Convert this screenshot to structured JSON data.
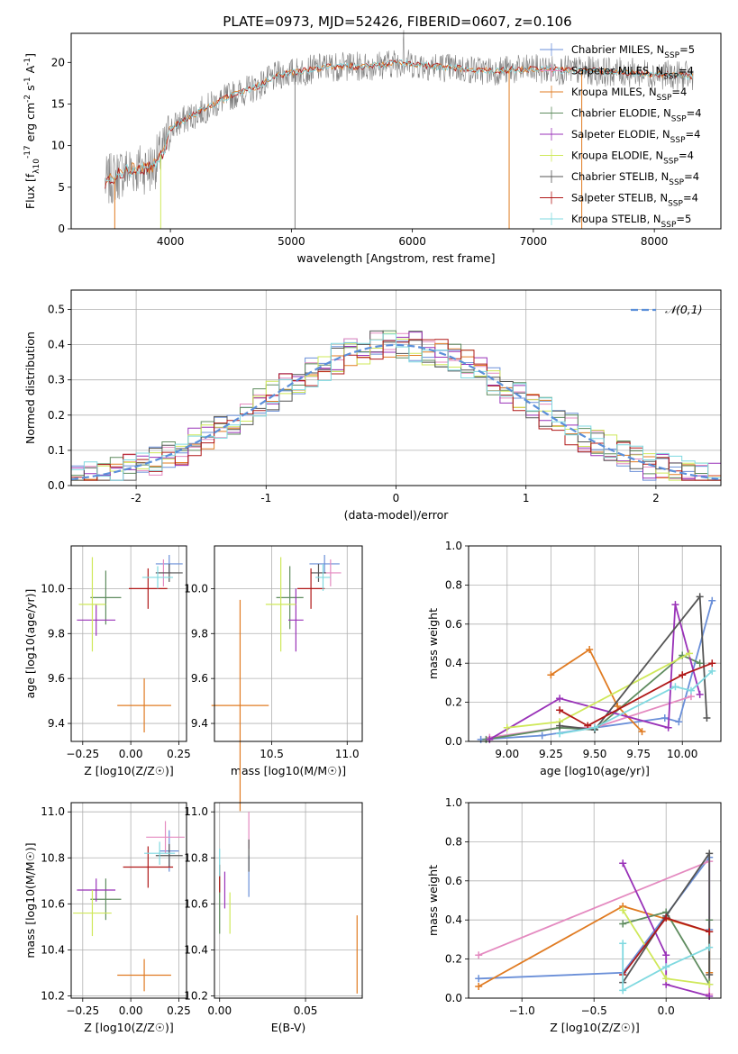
{
  "figure": {
    "title": "PLATE=0973, MJD=52426, FIBERID=0607, z=0.106"
  },
  "colors": {
    "chabrier_miles": "#6a8fd8",
    "salpeter_miles": "#e48ac0",
    "kroupa_miles": "#e07b22",
    "chabrier_elodie": "#5f8c5f",
    "salpeter_elodie": "#9932b8",
    "kroupa_elodie": "#cfe85a",
    "chabrier_stelib": "#555555",
    "salpeter_stelib": "#b01818",
    "kroupa_stelib": "#7fd9e0",
    "normal_curve": "#5b8fd9",
    "grid": "#b0b0b0",
    "spectrum_gray": "#808080"
  },
  "chart_data": [
    {
      "id": "spectrum",
      "type": "line",
      "title": "PLATE=0973, MJD=52426, FIBERID=0607, z=0.106",
      "xlabel": "wavelength [Angstrom, rest frame]",
      "ylabel": "Flux [f_λ10^-17 erg cm^-2 s^-1 A^-1]",
      "xlim": [
        3180,
        8550
      ],
      "ylim": [
        0,
        23.5
      ],
      "xticks": [
        4000,
        5000,
        6000,
        7000,
        8000
      ],
      "yticks": [
        0,
        5,
        10,
        15,
        20
      ],
      "grid": false,
      "legend_position": "top-right",
      "legend": [
        "Chabrier MILES, N_SSP=5",
        "Salpeter MILES, N_SSP=4",
        "Kroupa MILES, N_SSP=4",
        "Chabrier ELODIE, N_SSP=4",
        "Salpeter ELODIE, N_SSP=4",
        "Kroupa ELODIE, N_SSP=4",
        "Chabrier STELIB, N_SSP=4",
        "Salpeter STELIB, N_SSP=4",
        "Kroupa STELIB, N_SSP=5"
      ],
      "continuum_points": [
        [
          3460,
          5.5
        ],
        [
          3600,
          6.8
        ],
        [
          3700,
          7.2
        ],
        [
          3850,
          7.4
        ],
        [
          3950,
          9.5
        ],
        [
          4000,
          12.0
        ],
        [
          4100,
          13.0
        ],
        [
          4300,
          14.5
        ],
        [
          4500,
          16.0
        ],
        [
          4700,
          17.0
        ],
        [
          4900,
          18.5
        ],
        [
          5100,
          19.0
        ],
        [
          5300,
          19.5
        ],
        [
          5600,
          19.5
        ],
        [
          5900,
          20.0
        ],
        [
          6200,
          19.5
        ],
        [
          6600,
          19.0
        ],
        [
          7000,
          19.2
        ],
        [
          7400,
          19.0
        ],
        [
          7800,
          18.8
        ],
        [
          8100,
          18.5
        ],
        [
          8320,
          18.3
        ]
      ]
    },
    {
      "id": "residuals",
      "type": "histogram",
      "xlabel": "(data-model)/error",
      "ylabel": "Normed distribution",
      "xlim": [
        -2.5,
        2.5
      ],
      "ylim": [
        0,
        0.555
      ],
      "xticks": [
        -2,
        -1,
        0,
        1,
        2
      ],
      "yticks": [
        0.0,
        0.1,
        0.2,
        0.3,
        0.4,
        0.5
      ],
      "grid": true,
      "bin_width": 0.1,
      "legend_position": "top-right",
      "legend": [
        "𝒩(0,1)"
      ],
      "normal_curve": {
        "mean": 0,
        "sigma": 1
      }
    },
    {
      "id": "age-Z",
      "type": "errorbar",
      "xlabel": "Z [log10(Z/Z☉)]",
      "ylabel": "age  [log10(age/yr)]",
      "xlim": [
        -0.31,
        0.29
      ],
      "ylim": [
        9.32,
        10.19
      ],
      "xticks": [
        -0.25,
        0.0,
        0.25
      ],
      "xticklabels": [
        "−0.25",
        "0.00",
        "0.25"
      ],
      "yticks": [
        9.4,
        9.6,
        9.8,
        10.0
      ],
      "grid": true,
      "points": [
        {
          "model": "chabrier_miles",
          "x": 0.2,
          "xerr": 0.07,
          "y": 10.11,
          "yerr": 0.04
        },
        {
          "model": "salpeter_miles",
          "x": 0.17,
          "xerr": 0.04,
          "y": 10.07,
          "yerr": 0.06
        },
        {
          "model": "kroupa_miles",
          "x": 0.07,
          "xerr": 0.14,
          "y": 9.48,
          "yerr": 0.12
        },
        {
          "model": "chabrier_elodie",
          "x": -0.13,
          "xerr": 0.08,
          "y": 9.96,
          "yerr": 0.12
        },
        {
          "model": "salpeter_elodie",
          "x": -0.18,
          "xerr": 0.1,
          "y": 9.86,
          "yerr": 0.07
        },
        {
          "model": "kroupa_elodie",
          "x": -0.2,
          "xerr": 0.07,
          "y": 9.93,
          "yerr": 0.21
        },
        {
          "model": "chabrier_stelib",
          "x": 0.2,
          "xerr": 0.07,
          "y": 10.07,
          "yerr": 0.04
        },
        {
          "model": "salpeter_stelib",
          "x": 0.09,
          "xerr": 0.1,
          "y": 10.0,
          "yerr": 0.09
        },
        {
          "model": "kroupa_stelib",
          "x": 0.14,
          "xerr": 0.08,
          "y": 10.05,
          "yerr": 0.05
        }
      ]
    },
    {
      "id": "age-mass",
      "type": "errorbar",
      "xlabel": "mass [log10(M/M☉)]",
      "xlim": [
        10.12,
        11.1
      ],
      "ylim": [
        9.32,
        10.19
      ],
      "xticks": [
        10.5,
        11.0
      ],
      "xticklabels": [
        "10.5",
        "11.0"
      ],
      "yticks": [
        9.4,
        9.6,
        9.8,
        10.0
      ],
      "grid": true,
      "points": [
        {
          "model": "chabrier_miles",
          "x": 10.85,
          "xerr": 0.1,
          "y": 10.11,
          "yerr": 0.04
        },
        {
          "model": "salpeter_miles",
          "x": 10.89,
          "xerr": 0.07,
          "y": 10.07,
          "yerr": 0.06
        },
        {
          "model": "kroupa_miles",
          "x": 10.29,
          "xerr": 0.19,
          "y": 9.48,
          "yerr": 0.47
        },
        {
          "model": "chabrier_elodie",
          "x": 10.62,
          "xerr": 0.09,
          "y": 9.96,
          "yerr": 0.14
        },
        {
          "model": "salpeter_elodie",
          "x": 10.66,
          "xerr": 0.05,
          "y": 9.86,
          "yerr": 0.14
        },
        {
          "model": "kroupa_elodie",
          "x": 10.56,
          "xerr": 0.1,
          "y": 9.93,
          "yerr": 0.21
        },
        {
          "model": "chabrier_stelib",
          "x": 10.81,
          "xerr": 0.05,
          "y": 10.07,
          "yerr": 0.04
        },
        {
          "model": "salpeter_stelib",
          "x": 10.76,
          "xerr": 0.09,
          "y": 10.0,
          "yerr": 0.09
        },
        {
          "model": "kroupa_stelib",
          "x": 10.84,
          "xerr": 0.05,
          "y": 10.05,
          "yerr": 0.06
        }
      ]
    },
    {
      "id": "weight-age",
      "type": "line",
      "xlabel": "age  [log10(age/yr)]",
      "ylabel": "mass weight",
      "xlim": [
        8.78,
        10.22
      ],
      "ylim": [
        0.0,
        1.0
      ],
      "xticks": [
        9.0,
        9.25,
        9.5,
        9.75,
        10.0
      ],
      "xticklabels": [
        "9.00",
        "9.25",
        "9.50",
        "9.75",
        "10.00"
      ],
      "yticks": [
        0.0,
        0.2,
        0.4,
        0.6,
        0.8,
        1.0
      ],
      "grid": true,
      "series": [
        {
          "model": "chabrier_miles",
          "x": [
            8.85,
            9.2,
            9.5,
            9.9,
            9.98,
            10.17
          ],
          "y": [
            0.01,
            0.03,
            0.07,
            0.12,
            0.1,
            0.72
          ]
        },
        {
          "model": "salpeter_miles",
          "x": [
            8.9,
            9.3,
            9.5,
            10.05
          ],
          "y": [
            0.02,
            0.07,
            0.07,
            0.23
          ]
        },
        {
          "model": "kroupa_miles",
          "x": [
            9.25,
            9.47,
            9.63,
            9.77
          ],
          "y": [
            0.34,
            0.47,
            0.18,
            0.05
          ]
        },
        {
          "model": "chabrier_elodie",
          "x": [
            8.88,
            9.3,
            9.5,
            10.0,
            10.1
          ],
          "y": [
            0.01,
            0.07,
            0.06,
            0.44,
            0.4
          ]
        },
        {
          "model": "salpeter_elodie",
          "x": [
            8.9,
            9.3,
            9.92,
            9.96,
            10.1
          ],
          "y": [
            0.01,
            0.22,
            0.07,
            0.7,
            0.24
          ]
        },
        {
          "model": "kroupa_elodie",
          "x": [
            9.0,
            9.3,
            10.04
          ],
          "y": [
            0.07,
            0.1,
            0.45
          ]
        },
        {
          "model": "chabrier_stelib",
          "x": [
            9.3,
            9.5,
            10.1,
            10.14
          ],
          "y": [
            0.08,
            0.06,
            0.74,
            0.12
          ]
        },
        {
          "model": "salpeter_stelib",
          "x": [
            9.3,
            9.46,
            10.0,
            10.17
          ],
          "y": [
            0.16,
            0.08,
            0.34,
            0.4
          ]
        },
        {
          "model": "kroupa_stelib",
          "x": [
            9.3,
            9.5,
            9.96,
            10.05,
            10.17
          ],
          "y": [
            0.04,
            0.07,
            0.28,
            0.26,
            0.36
          ]
        }
      ]
    },
    {
      "id": "mass-Z",
      "type": "errorbar",
      "xlabel": "Z [log10(Z/Z☉)]",
      "ylabel": "mass [log10(M/M☉)]",
      "xlim": [
        -0.31,
        0.29
      ],
      "ylim": [
        10.19,
        11.04
      ],
      "xticks": [
        -0.25,
        0.0,
        0.25
      ],
      "xticklabels": [
        "−0.25",
        "0.00",
        "0.25"
      ],
      "yticks": [
        10.2,
        10.4,
        10.6,
        10.8,
        11.0
      ],
      "grid": true,
      "points": [
        {
          "model": "chabrier_miles",
          "x": 0.2,
          "xerr": 0.05,
          "y": 10.83,
          "yerr": 0.09
        },
        {
          "model": "salpeter_miles",
          "x": 0.18,
          "xerr": 0.1,
          "y": 10.89,
          "yerr": 0.07
        },
        {
          "model": "kroupa_miles",
          "x": 0.07,
          "xerr": 0.14,
          "y": 10.29,
          "yerr": 0.07
        },
        {
          "model": "chabrier_elodie",
          "x": -0.13,
          "xerr": 0.08,
          "y": 10.62,
          "yerr": 0.09
        },
        {
          "model": "salpeter_elodie",
          "x": -0.18,
          "xerr": 0.1,
          "y": 10.66,
          "yerr": 0.05
        },
        {
          "model": "kroupa_elodie",
          "x": -0.2,
          "xerr": 0.1,
          "y": 10.56,
          "yerr": 0.1
        },
        {
          "model": "chabrier_stelib",
          "x": 0.2,
          "xerr": 0.07,
          "y": 10.81,
          "yerr": 0.05
        },
        {
          "model": "salpeter_stelib",
          "x": 0.09,
          "xerr": 0.13,
          "y": 10.76,
          "yerr": 0.09
        },
        {
          "model": "kroupa_stelib",
          "x": 0.15,
          "xerr": 0.08,
          "y": 10.82,
          "yerr": 0.05
        }
      ]
    },
    {
      "id": "mass-EBV",
      "type": "errorbar",
      "xlabel": "E(B-V)",
      "xlim": [
        -0.003,
        0.083
      ],
      "ylim": [
        10.19,
        11.04
      ],
      "xticks": [
        0.0,
        0.05
      ],
      "xticklabels": [
        "0.00",
        "0.05"
      ],
      "yticks": [
        10.2,
        10.4,
        10.6,
        10.8,
        11.0
      ],
      "grid": true,
      "points": [
        {
          "model": "chabrier_miles",
          "x": 0.017,
          "y": 10.72,
          "yerr": 0.09
        },
        {
          "model": "salpeter_miles",
          "x": 0.017,
          "y": 10.92,
          "yerr": 0.08
        },
        {
          "model": "kroupa_miles",
          "x": 0.08,
          "y": 10.38,
          "yerr": 0.17
        },
        {
          "model": "chabrier_elodie",
          "x": 0.0,
          "y": 10.62,
          "yerr": 0.15
        },
        {
          "model": "salpeter_elodie",
          "x": 0.003,
          "y": 10.66,
          "yerr": 0.08
        },
        {
          "model": "kroupa_elodie",
          "x": 0.006,
          "y": 10.56,
          "yerr": 0.09
        },
        {
          "model": "chabrier_stelib",
          "x": 0.017,
          "y": 10.81,
          "yerr": 0.07
        },
        {
          "model": "salpeter_stelib",
          "x": 0.0,
          "y": 10.71,
          "yerr": 0.06
        },
        {
          "model": "kroupa_stelib",
          "x": 0.0,
          "y": 10.78,
          "yerr": 0.06
        }
      ]
    },
    {
      "id": "weight-Z",
      "type": "line",
      "xlabel": "Z [log10(Z/Z☉)]",
      "ylabel": "mass weight",
      "xlim": [
        -1.37,
        0.38
      ],
      "ylim": [
        0.0,
        1.0
      ],
      "xticks": [
        -1.0,
        -0.5,
        0.0
      ],
      "xticklabels": [
        "−1.0",
        "−0.5",
        "0.0"
      ],
      "yticks": [
        0.0,
        0.2,
        0.4,
        0.6,
        0.8,
        1.0
      ],
      "grid": true,
      "series": [
        {
          "model": "chabrier_miles",
          "x": [
            -1.3,
            -0.3,
            0.3,
            0.3
          ],
          "y": [
            0.1,
            0.13,
            0.72,
            0.35
          ]
        },
        {
          "model": "salpeter_miles",
          "x": [
            -1.3,
            0.3,
            0.3
          ],
          "y": [
            0.22,
            0.7,
            0.02
          ]
        },
        {
          "model": "kroupa_miles",
          "x": [
            -1.3,
            -0.3,
            0.3,
            0.3
          ],
          "y": [
            0.06,
            0.47,
            0.34,
            0.13
          ]
        },
        {
          "model": "chabrier_elodie",
          "x": [
            -0.3,
            0.0,
            0.3,
            0.3
          ],
          "y": [
            0.38,
            0.44,
            0.07,
            0.4
          ]
        },
        {
          "model": "salpeter_elodie",
          "x": [
            -0.3,
            0.0,
            0.0,
            0.3
          ],
          "y": [
            0.69,
            0.22,
            0.07,
            0.01
          ]
        },
        {
          "model": "kroupa_elodie",
          "x": [
            -0.3,
            0.0,
            0.3
          ],
          "y": [
            0.45,
            0.1,
            0.07
          ]
        },
        {
          "model": "chabrier_stelib",
          "x": [
            -0.3,
            0.0,
            0.3,
            0.3
          ],
          "y": [
            0.08,
            0.42,
            0.74,
            0.12
          ]
        },
        {
          "model": "salpeter_stelib",
          "x": [
            -0.3,
            0.0,
            0.3
          ],
          "y": [
            0.12,
            0.41,
            0.34
          ]
        },
        {
          "model": "kroupa_stelib",
          "x": [
            -0.3,
            -0.3,
            0.0,
            0.3
          ],
          "y": [
            0.28,
            0.04,
            0.16,
            0.26
          ]
        }
      ]
    }
  ]
}
